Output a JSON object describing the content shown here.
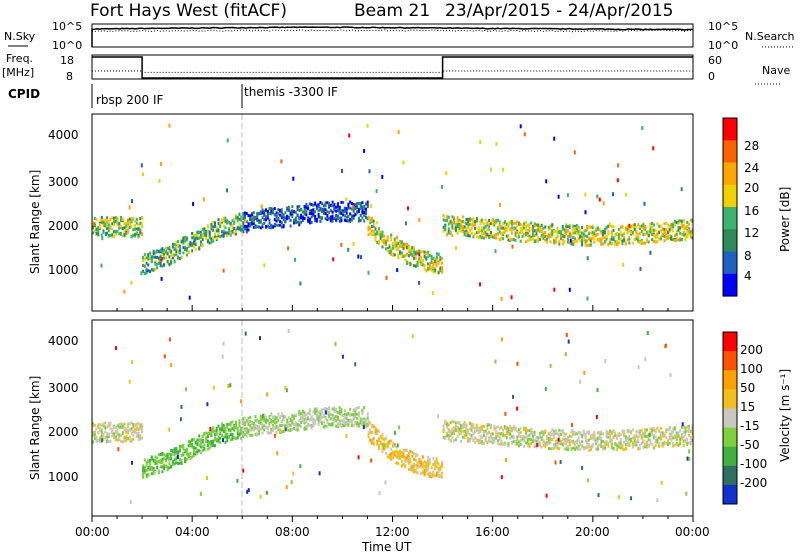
{
  "header": {
    "radar": "Fort Hays West (fitACF)",
    "beam": "Beam 21",
    "dates": "23/Apr/2015 - 24/Apr/2015"
  },
  "top_panels": {
    "nsky_label": "N.Sky",
    "nsky_ticks": [
      "10^5",
      "10^0"
    ],
    "nsearch_label": "N.Search",
    "freq_label": "Freq.",
    "freq_unit": "[MHz]",
    "freq_ticks": [
      "18",
      "8"
    ],
    "nave_label": "Nave",
    "nave_ticks": [
      "60",
      "0"
    ],
    "cpid_label": "CPID",
    "cpid_modes": [
      "rbsp 200 IF",
      "themis -3300 IF"
    ]
  },
  "power_panel": {
    "ylabel": "Slant Range [km]",
    "yticks": [
      "4000",
      "3000",
      "2000",
      "1000"
    ],
    "cbar_label": "Power [dB]",
    "cbar_ticks": [
      "28",
      "24",
      "20",
      "16",
      "12",
      "8",
      "4"
    ]
  },
  "velocity_panel": {
    "ylabel": "Slant Range [km]",
    "yticks": [
      "4000",
      "3000",
      "2000",
      "1000"
    ],
    "cbar_label": "Velocity [m s⁻¹]",
    "cbar_ticks": [
      "200",
      "100",
      "50",
      "15",
      "-15",
      "-50",
      "-100",
      "-200"
    ]
  },
  "xaxis": {
    "label": "Time UT",
    "ticks": [
      "00:00",
      "04:00",
      "08:00",
      "12:00",
      "16:00",
      "20:00",
      "00:00"
    ]
  },
  "colors": {
    "power_scale": [
      "#0000ff",
      "#2060c0",
      "#2e8b57",
      "#3cb371",
      "#f0d000",
      "#ffa500",
      "#ff6000",
      "#ff0000"
    ],
    "velocity_scale": [
      "#1030d0",
      "#2f6f5f",
      "#40b040",
      "#7fd040",
      "#c8c8c0",
      "#f0c020",
      "#ffa000",
      "#ff5000",
      "#ff0000"
    ],
    "ground_scatter": "#c8c8c0"
  },
  "chart_data": [
    {
      "type": "line",
      "title": "N.Sky / N.Search",
      "x_range_hours": [
        0,
        24
      ],
      "y_scale": "log",
      "ylim": [
        1,
        100000
      ],
      "series": [
        {
          "name": "N.Sky",
          "x": [
            0,
            2,
            4,
            6,
            8,
            10,
            12,
            14,
            16,
            18,
            20,
            22,
            24
          ],
          "y": [
            12000,
            16000,
            20000,
            25000,
            30000,
            30000,
            25000,
            20000,
            16000,
            14000,
            12000,
            10000,
            9000
          ]
        },
        {
          "name": "N.Search",
          "x": [
            0,
            4,
            8,
            12,
            16,
            20,
            22,
            24
          ],
          "y": [
            4000,
            5000,
            6000,
            6000,
            5000,
            4000,
            6000,
            5000
          ]
        }
      ]
    },
    {
      "type": "line",
      "title": "Freq / Nave",
      "x_range_hours": [
        0,
        24
      ],
      "series": [
        {
          "name": "Freq.",
          "x": [
            0,
            2,
            2,
            14,
            14,
            24
          ],
          "y": [
            18,
            18,
            8,
            8,
            18,
            18
          ]
        },
        {
          "name": "Nave",
          "x": [
            0,
            2,
            2,
            14,
            14,
            24
          ],
          "y": [
            20,
            20,
            16,
            16,
            20,
            20
          ]
        }
      ],
      "annotations": [
        {
          "text": "rbsp 200 IF",
          "x": 0
        },
        {
          "text": "themis -3300 IF",
          "x": 6
        }
      ]
    },
    {
      "type": "heatmap",
      "title": "Power",
      "x_range_hours": [
        0,
        24
      ],
      "ylim": [
        0,
        4500
      ],
      "ylabel": "Slant Range [km]",
      "clim": [
        0,
        30
      ],
      "bands": [
        {
          "x": [
            0,
            0.5,
            1,
            1.5,
            2
          ],
          "y_km": [
            1950,
            1950,
            1950,
            1950,
            1950
          ],
          "value_db": 14
        },
        {
          "x": [
            2,
            3,
            4,
            5,
            6
          ],
          "y_km": [
            1100,
            1300,
            1600,
            1900,
            2050
          ],
          "value_db": 12
        },
        {
          "x": [
            6,
            7,
            8,
            9,
            10,
            11
          ],
          "y_km": [
            2050,
            2150,
            2200,
            2300,
            2300,
            2300
          ],
          "value_db": 5
        },
        {
          "x": [
            11,
            12,
            13,
            14
          ],
          "y_km": [
            2000,
            1500,
            1200,
            1100
          ],
          "value_db": 16
        },
        {
          "x": [
            14,
            16,
            18,
            20,
            22,
            24
          ],
          "y_km": [
            2000,
            1900,
            1800,
            1750,
            1800,
            1900
          ],
          "value_db": 16
        }
      ]
    },
    {
      "type": "heatmap",
      "title": "Velocity",
      "x_range_hours": [
        0,
        24
      ],
      "ylim": [
        0,
        4500
      ],
      "ylabel": "Slant Range [km]",
      "clim": [
        -200,
        200
      ],
      "bands": [
        {
          "x": [
            0,
            0.5,
            1,
            1.5,
            2
          ],
          "y_km": [
            1950,
            1950,
            1950,
            1950,
            1950
          ],
          "value_ms": 0
        },
        {
          "x": [
            2,
            3,
            4,
            5,
            6
          ],
          "y_km": [
            1100,
            1300,
            1600,
            1900,
            2050
          ],
          "value_ms": -60
        },
        {
          "x": [
            6,
            7,
            8,
            9,
            10,
            11
          ],
          "y_km": [
            2050,
            2150,
            2200,
            2300,
            2300,
            2300
          ],
          "value_ms": -20
        },
        {
          "x": [
            11,
            12,
            13,
            14
          ],
          "y_km": [
            2000,
            1500,
            1200,
            1100
          ],
          "value_ms": 40
        },
        {
          "x": [
            14,
            16,
            18,
            20,
            22,
            24
          ],
          "y_km": [
            2000,
            1900,
            1800,
            1750,
            1800,
            1900
          ],
          "value_ms": 0
        }
      ]
    }
  ]
}
